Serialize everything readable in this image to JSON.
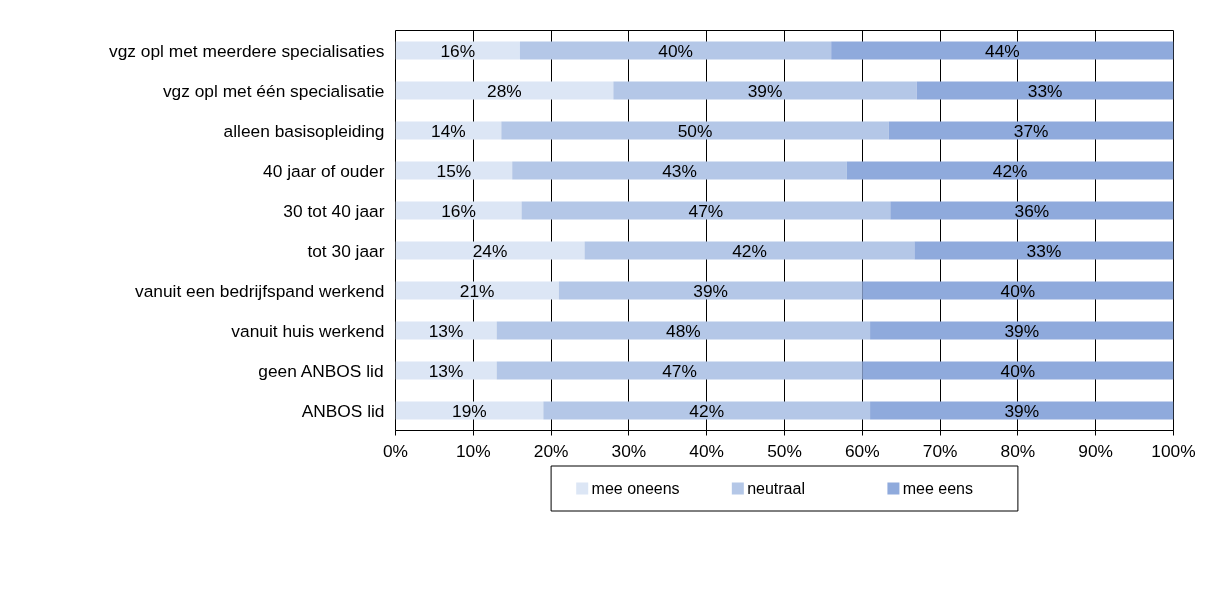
{
  "chart_data": {
    "type": "bar",
    "orientation": "horizontal",
    "stacked": true,
    "categories": [
      "vgz opl met meerdere specialisaties",
      "vgz opl met één specialisatie",
      "alleen basisopleiding",
      "40 jaar of ouder",
      "30 tot 40 jaar",
      "tot 30 jaar",
      "vanuit een bedrijfspand werkend",
      "vanuit huis werkend",
      "geen ANBOS lid",
      "ANBOS lid"
    ],
    "series": [
      {
        "name": "mee oneens",
        "color": "#dce6f5",
        "values": [
          16,
          28,
          13.6,
          15,
          16.2,
          24.3,
          21,
          13,
          13,
          19
        ],
        "value_labels": [
          "16%",
          "28%",
          "14%",
          "15%",
          "16%",
          "24%",
          "21%",
          "13%",
          "13%",
          "19%"
        ]
      },
      {
        "name": "neutraal",
        "color": "#b4c7e7",
        "values": [
          40,
          39,
          49.8,
          43,
          47.4,
          42.4,
          39,
          48,
          47,
          42
        ],
        "value_labels": [
          "40%",
          "39%",
          "50%",
          "43%",
          "47%",
          "42%",
          "39%",
          "48%",
          "47%",
          "42%"
        ]
      },
      {
        "name": "mee eens",
        "color": "#8faadc",
        "values": [
          44,
          33,
          36.6,
          42,
          36.4,
          33.3,
          40,
          39,
          40,
          39
        ],
        "value_labels": [
          "44%",
          "33%",
          "37%",
          "42%",
          "36%",
          "33%",
          "40%",
          "39%",
          "40%",
          "39%"
        ]
      }
    ],
    "xlim": [
      0,
      100
    ],
    "xticks": [
      {
        "value": 0,
        "label": "0%"
      },
      {
        "value": 10,
        "label": "10%"
      },
      {
        "value": 20,
        "label": "20%"
      },
      {
        "value": 30,
        "label": "30%"
      },
      {
        "value": 40,
        "label": "40%"
      },
      {
        "value": 50,
        "label": "50%"
      },
      {
        "value": 60,
        "label": "60%"
      },
      {
        "value": 70,
        "label": "70%"
      },
      {
        "value": 80,
        "label": "80%"
      },
      {
        "value": 90,
        "label": "90%"
      },
      {
        "value": 100,
        "label": "100%"
      }
    ],
    "grid": "x",
    "legend": "bottom"
  }
}
